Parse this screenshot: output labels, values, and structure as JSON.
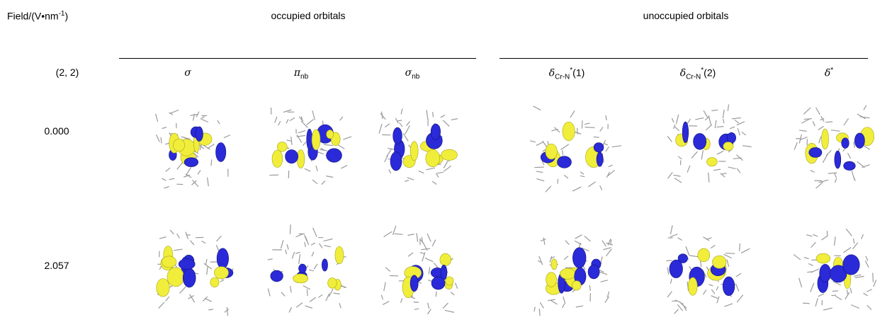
{
  "header": {
    "field_label": {
      "text": "Field/(V•nm",
      "sup": "-1",
      "end": ")"
    },
    "groups": [
      "occupied orbitals",
      "unoccupied orbitals"
    ]
  },
  "columns": {
    "state": "(2, 2)",
    "orbitals": [
      {
        "symbol": "σ"
      },
      {
        "symbol": "π",
        "sub": "nb"
      },
      {
        "symbol": "σ",
        "sub": "nb"
      },
      {
        "symbol": "δ",
        "sub": "Cr-N",
        "sup": "*",
        "suffix": "(1)"
      },
      {
        "symbol": "δ",
        "sub": "Cr-N",
        "sup": "*",
        "suffix": "(2)"
      },
      {
        "symbol": "δ",
        "sup": "*"
      }
    ]
  },
  "rows": [
    "0.000",
    "2.057"
  ]
}
